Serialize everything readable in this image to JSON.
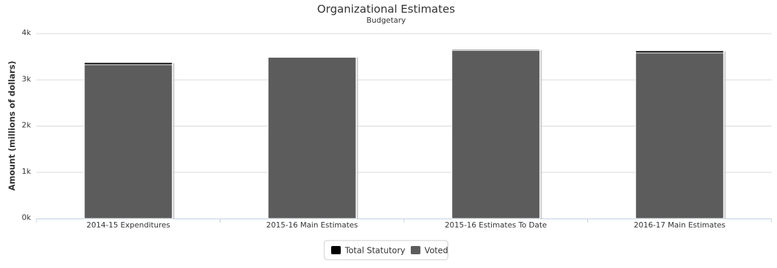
{
  "chart_data": {
    "type": "stacked_bar",
    "title": "Organizational Estimates",
    "subtitle": "Budgetary",
    "y_label": "Amount (millions of dollars)",
    "categories": [
      "2014-15 Expenditures",
      "2015-16 Main Estimates",
      "2015-16 Estimates To Date",
      "2016-17 Main Estimates"
    ],
    "series": [
      {
        "name": "Total Statutory",
        "color": "#000000",
        "values": [
          45,
          15,
          20,
          45
        ]
      },
      {
        "name": "Voted",
        "color": "#5c5c5c",
        "values": [
          3330,
          3490,
          3640,
          3585
        ]
      }
    ],
    "ylim": [
      0,
      4000
    ],
    "yticks": [
      {
        "value": 0,
        "label": "0k"
      },
      {
        "value": 1000,
        "label": "1k"
      },
      {
        "value": 2000,
        "label": "2k"
      },
      {
        "value": 3000,
        "label": "3k"
      },
      {
        "value": 4000,
        "label": "4k"
      }
    ],
    "grid": true,
    "legend": "bottom"
  }
}
